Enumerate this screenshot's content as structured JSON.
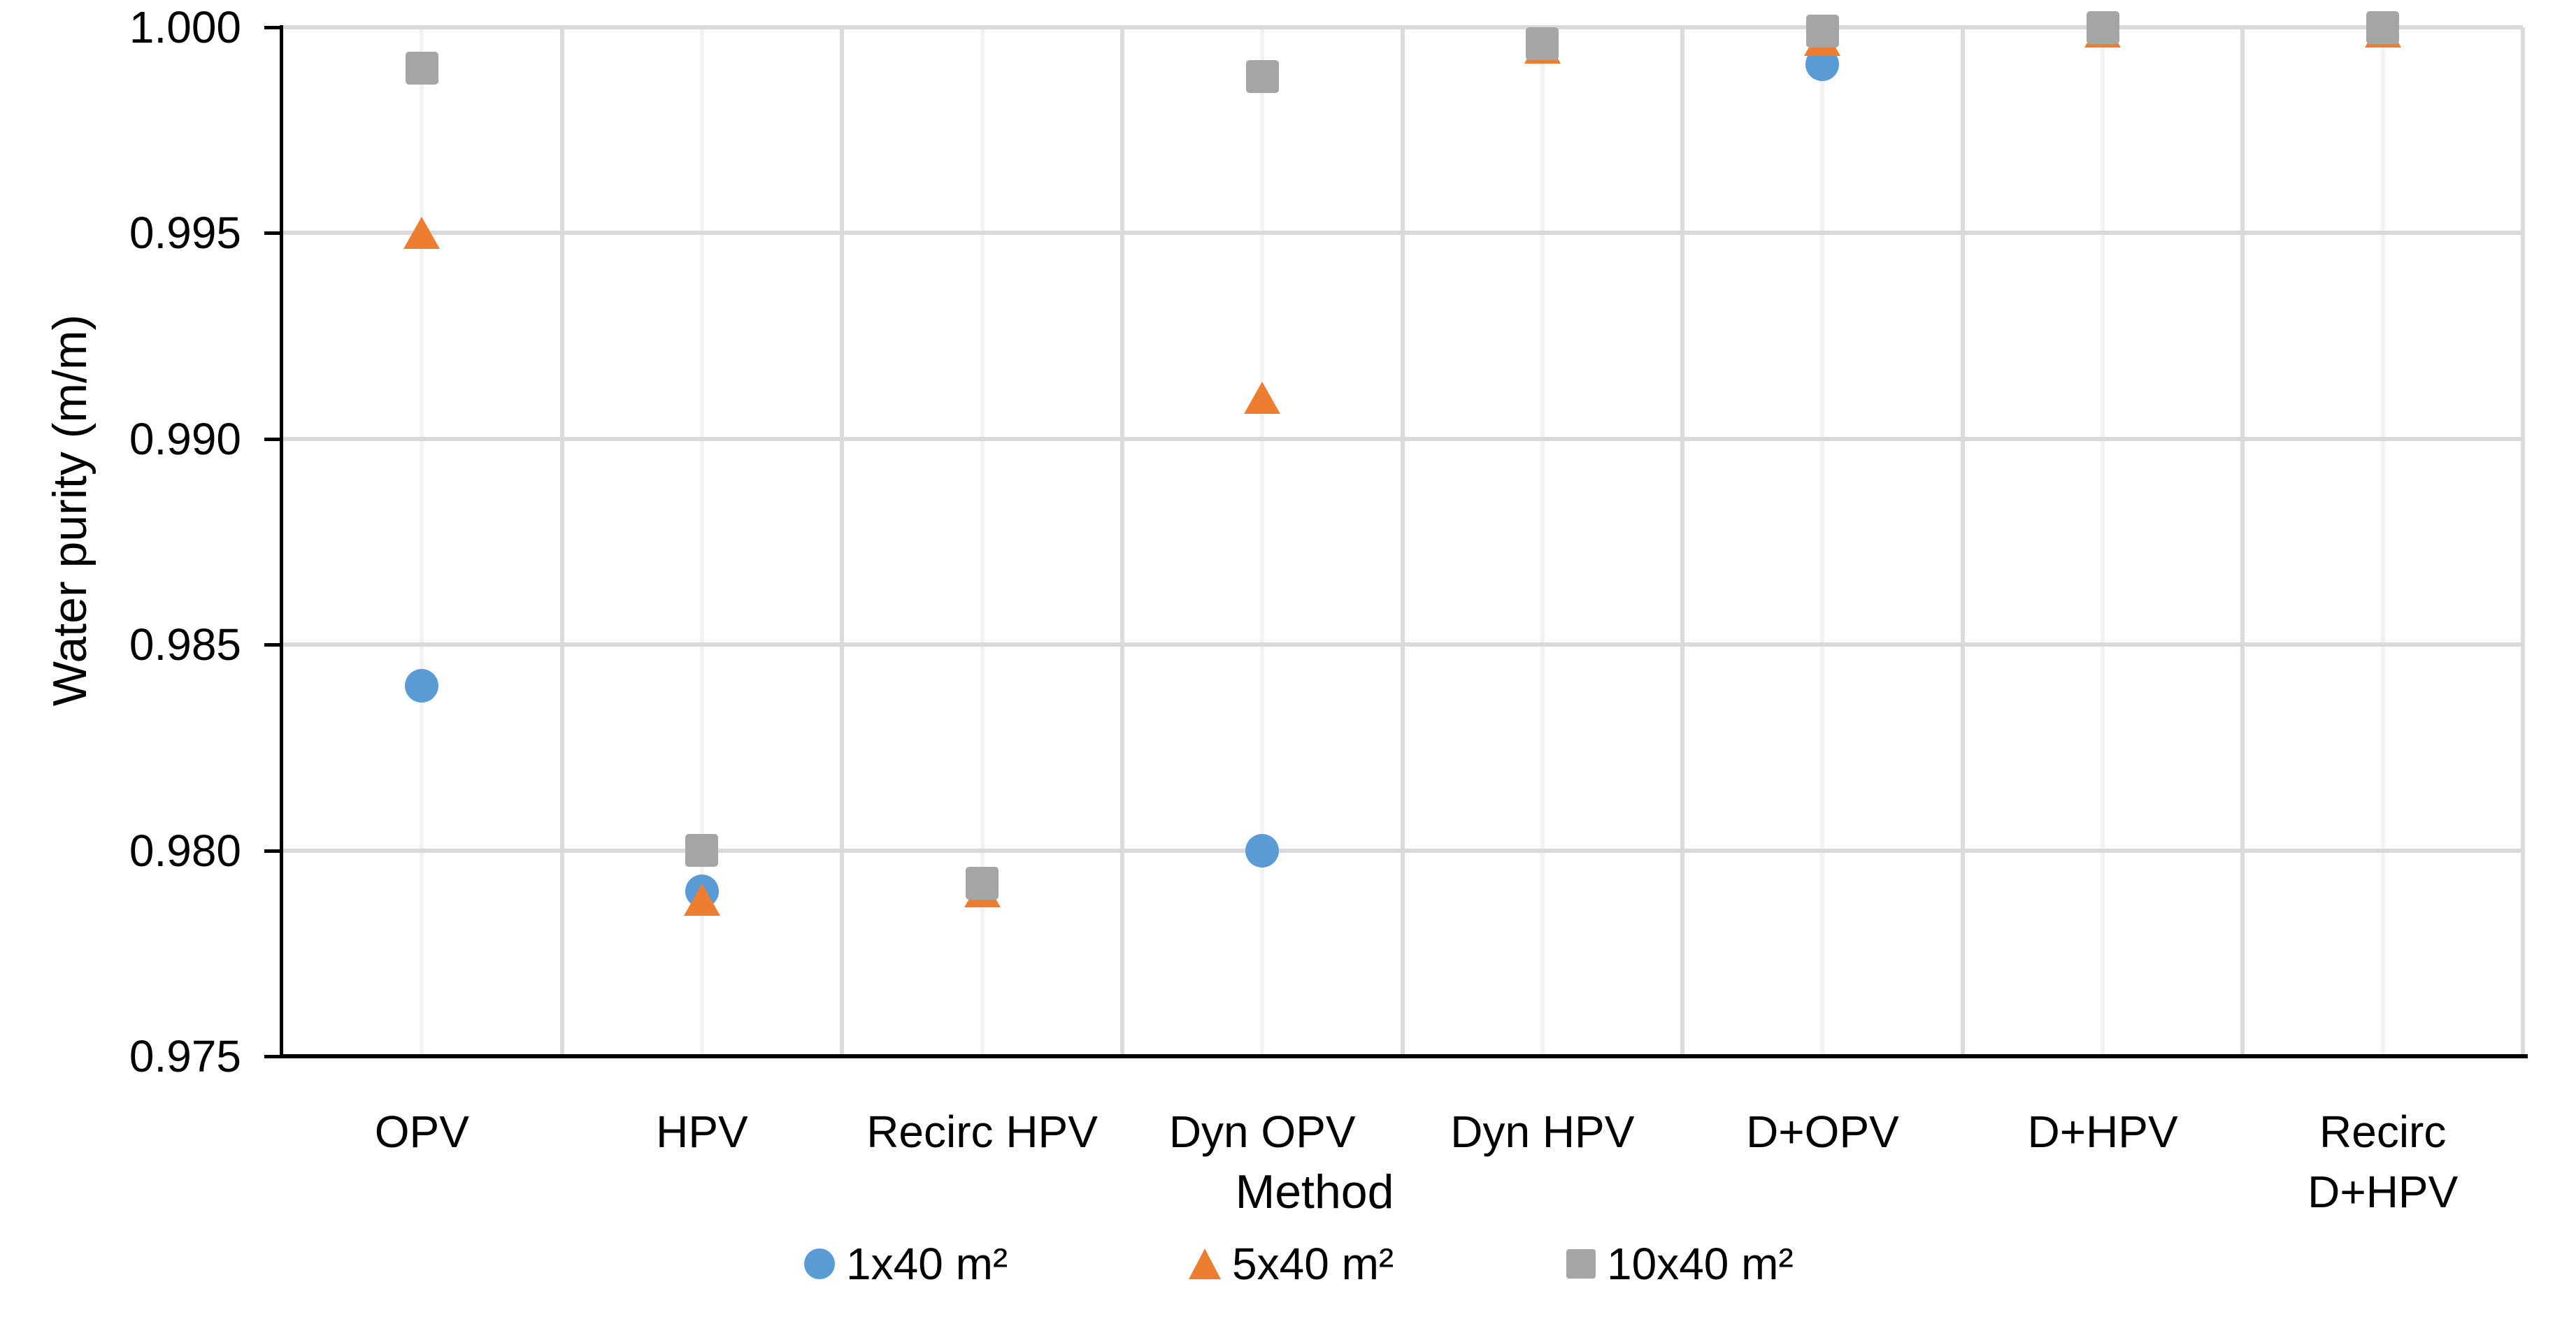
{
  "chart_data": {
    "type": "scatter",
    "title": "",
    "xlabel": "Method",
    "ylabel": "Water purity (m/m)",
    "ylim": [
      0.975,
      1.0
    ],
    "ytick_step": 0.005,
    "yticks": [
      "1.000",
      "0.995",
      "0.990",
      "0.985",
      "0.980",
      "0.975"
    ],
    "categories": [
      "OPV",
      "HPV",
      "Recirc HPV",
      "Dyn OPV",
      "Dyn HPV",
      "D+OPV",
      "D+HPV",
      "Recirc D+HPV"
    ],
    "series": [
      {
        "name": "1x40 m²",
        "marker": "circle",
        "color": "#5B9BD5",
        "values": [
          0.984,
          0.979,
          null,
          0.98,
          null,
          0.9991,
          null,
          null
        ]
      },
      {
        "name": "5x40 m²",
        "marker": "triangle",
        "color": "#ED7D31",
        "values": [
          0.995,
          0.9788,
          0.979,
          0.991,
          0.9995,
          0.9997,
          0.9999,
          0.9999
        ]
      },
      {
        "name": "10x40 m²",
        "marker": "square",
        "color": "#A5A5A5",
        "values": [
          0.999,
          0.98,
          0.9792,
          0.9988,
          0.9996,
          0.9999,
          1.0,
          1.0
        ]
      }
    ],
    "grid": true,
    "legend_position": "bottom",
    "colors": {
      "axis": "#000000",
      "major_gridline": "#D9D9D9",
      "boundary_gridline": "#DBDBDB",
      "minor_gridline": "#F2F2F2",
      "text": "#000000",
      "background": "#FFFFFF"
    }
  }
}
